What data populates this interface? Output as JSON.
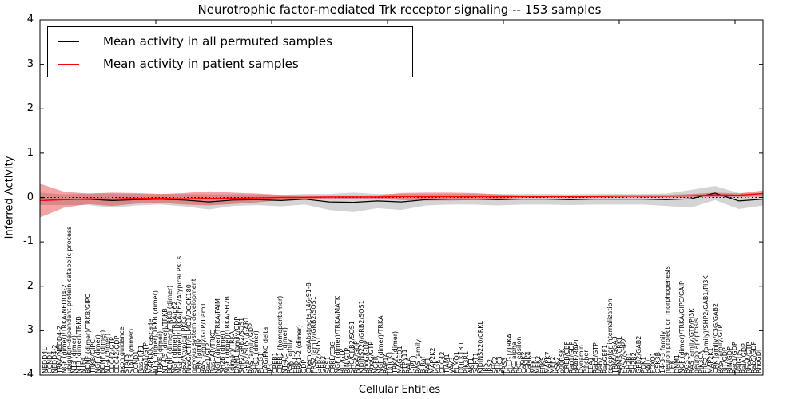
{
  "title": "Neurotrophic factor-mediated Trk receptor signaling -- 153 samples",
  "ylabel": "Inferred Activity",
  "xlabel": "Cellular Entities",
  "legend": {
    "items": [
      {
        "label": "Mean activity in all permuted samples",
        "color": "#000000"
      },
      {
        "label": "Mean activity in patient samples",
        "color": "#ff0000"
      }
    ]
  },
  "colors": {
    "permuted_line": "#000000",
    "patient_line": "#ff0000",
    "permuted_band": "rgba(160,160,160,0.45)",
    "patient_band": "rgba(228,26,28,0.40)",
    "zero_line": "#000000"
  },
  "chart_data": {
    "type": "line",
    "title": "Neurotrophic factor-mediated Trk receptor signaling -- 153 samples",
    "xlabel": "Cellular Entities",
    "ylabel": "Inferred Activity",
    "ylim": [
      -4,
      4
    ],
    "y_ticks": [
      "4",
      "3",
      "2",
      "1",
      "0",
      "-1",
      "-2",
      "-3",
      "-4"
    ],
    "legend_position": "upper left",
    "grid": false,
    "zero_reference_line": 0,
    "sample_fractions_note": "x values are fractions 0-1 across the 150 cellular entities",
    "series": [
      {
        "name": "Mean activity in all permuted samples",
        "mean": [
          -0.03,
          -0.05,
          -0.04,
          -0.07,
          -0.05,
          -0.04,
          -0.06,
          -0.1,
          -0.06,
          -0.05,
          -0.07,
          -0.04,
          -0.1,
          -0.11,
          -0.08,
          -0.1,
          -0.05,
          -0.04,
          -0.04,
          -0.05,
          -0.04,
          -0.04,
          -0.05,
          -0.04,
          -0.04,
          -0.04,
          -0.05,
          -0.03,
          0.1,
          -0.08,
          -0.04
        ],
        "band_halfwidth": [
          0.14,
          0.12,
          0.13,
          0.16,
          0.13,
          0.12,
          0.14,
          0.17,
          0.13,
          0.12,
          0.13,
          0.12,
          0.18,
          0.22,
          0.16,
          0.18,
          0.13,
          0.12,
          0.12,
          0.13,
          0.12,
          0.12,
          0.12,
          0.12,
          0.12,
          0.12,
          0.14,
          0.2,
          0.16,
          0.18,
          0.14
        ]
      },
      {
        "name": "Mean activity in patient samples",
        "mean": [
          -0.07,
          -0.05,
          -0.03,
          -0.04,
          -0.02,
          -0.02,
          -0.03,
          -0.02,
          -0.02,
          -0.01,
          0.0,
          0.0,
          0.01,
          0.01,
          0.01,
          0.02,
          0.02,
          0.02,
          0.02,
          0.02,
          0.02,
          0.02,
          0.02,
          0.02,
          0.03,
          0.03,
          0.03,
          0.04,
          0.06,
          0.05,
          0.09
        ],
        "band_halfwidth": [
          0.38,
          0.18,
          0.12,
          0.15,
          0.12,
          0.1,
          0.13,
          0.16,
          0.13,
          0.1,
          0.06,
          0.05,
          0.04,
          0.04,
          0.04,
          0.08,
          0.09,
          0.09,
          0.08,
          0.05,
          0.03,
          0.03,
          0.03,
          0.03,
          0.03,
          0.03,
          0.03,
          0.04,
          0.05,
          0.04,
          0.07
        ]
      }
    ],
    "categories": [
      "NEDD4L",
      "CCND1",
      "NEDD4-2",
      "TRKA/NEDD4-2",
      "NGF (dimer)/TRKA/NEDD4-2",
      "ubiquitin-dependent protein catabolic process",
      "NT3 (dimer)",
      "NT3 (dimer)/TRKB",
      "NTF4",
      "BDNF (dimer)/TRKB/GIPC",
      "TRKB/GIPC",
      "NGF (dimer)",
      "BDNF (dimer)",
      "NT-4 (dimer)",
      "CDC42/GTP",
      "CDC42/GDP",
      "axon guidance",
      "STAT3",
      "STAT3 (dimer)",
      "CCND1",
      "RasGRF1",
      "Rap1/GTP",
      "MAPKKK cascade",
      "NT3 (dimer)/TRKB (dimer)",
      "TRKB (dimer)",
      "NT-4/5 (dimer)/TRKB",
      "BDNF (dimer)/TRKB (dimer)",
      "NGF (dimer)/TRKA/p62",
      "NGF (dimer)/TRKA/p62/Atypical PKCs",
      "p62/Atypical PKCs",
      "RhoG/GTP/ELMO1/DOCK180",
      "nervous system development",
      "CRK family",
      "RAS family/GTP/Tiam1",
      "Rac1/GTP",
      "RasGAP/TRKC",
      "NGF (dimer)/TRKA/FAIM",
      "SH2B (dimer)",
      "NGF (dimer)/TRKA/SH2B",
      "(dimer)/TRKA",
      "DNM1 family/GDP",
      "SHP2/GRB2/SOS1",
      "GRB2/SOS1/GAB1",
      "RAS family/GDP",
      "SHC1 (dimer)",
      "PLCG1",
      "DAG/PKC delta",
      "IP3",
      "CREB1",
      "CREB1 (homopentamer)",
      "NT-4/5 (dimer)",
      "RSK family",
      "ERK1-2",
      "ERK1-2 (dimer)",
      "GDP",
      "ChemicalAbstracts:146-91-8",
      "FRS2 family/GRB2/SOS1",
      "GRB2/SOS1",
      "GRB2",
      "SOS1",
      "CRKL/C3G",
      "NGF (dimer)/TRKA/MATK",
      "RIT/GTP",
      "RIN/GTP",
      "SHC/GRB2/SOS1",
      "RhoA/GDP",
      "KIDINS220/GRB2/SOS1",
      "RhoG/GDP",
      "RhoG/GTP",
      "NGFR",
      "NGF (dimer)/TRKA",
      "RAP1A",
      "DOCK1",
      "TRKA (dimer)",
      "MAGED1",
      "PTPN11",
      "RALA",
      "GIPC1",
      "RAS family",
      "B-Raf",
      "RAF1",
      "MAP2K2",
      "PI3K",
      "CDC42",
      "TIAM1",
      "VAV3",
      "ELMO1",
      "DOCK180",
      "PIK3R1",
      "AKT1",
      "SORT1",
      "KIDINS220/CRKL",
      "IRS1",
      "IRS2",
      "SHC2",
      "SHC3",
      "FRS3",
      "PLCG1/TRKA",
      "PKC alpha",
      "PKC epsilon",
      "CaMK2",
      "CaMK4",
      "MEK1",
      "MEK2",
      "ERK5",
      "MAPK7",
      "MEF2",
      "RSK2",
      "p90RSK",
      "CREB/CBP",
      "Rap1/GDP",
      "BRAF/RAP1",
      "Dynamin",
      "Pincher",
      "EEA1",
      "Rab5/GTP",
      "Rab7",
      "RapGEF1",
      "receptor internalization",
      "TRKA/GGA3",
      "ARMS/CRKL",
      "FRS2/SHP2",
      "SH2B1",
      "SH2B2",
      "GRB2/GAB2",
      "PDK1",
      "BAD",
      "FOXO1",
      "GSK3B",
      "14-3-3 family",
      "neuron projection morphogenesis",
      "CHK",
      "DNM1",
      "NGF (dimer)/TRKA/GIPC/GAIP",
      "RGS19",
      "RAS family/GTP/PI3K",
      "neuron apoptosis",
      "PIK3CA",
      "FRS2 (family)/SHP2/GAB1/PI3K",
      "MAP2K1",
      "CRK family/C3G/GAB2",
      "RAS family/GTP",
      "RIT/GDP",
      "RIN/GDP",
      "Rac1/GDP",
      "RalGDS",
      "RalA/GDP",
      "RhoA/GTP",
      "Rab5/GDP",
      "RhoGDI"
    ]
  }
}
